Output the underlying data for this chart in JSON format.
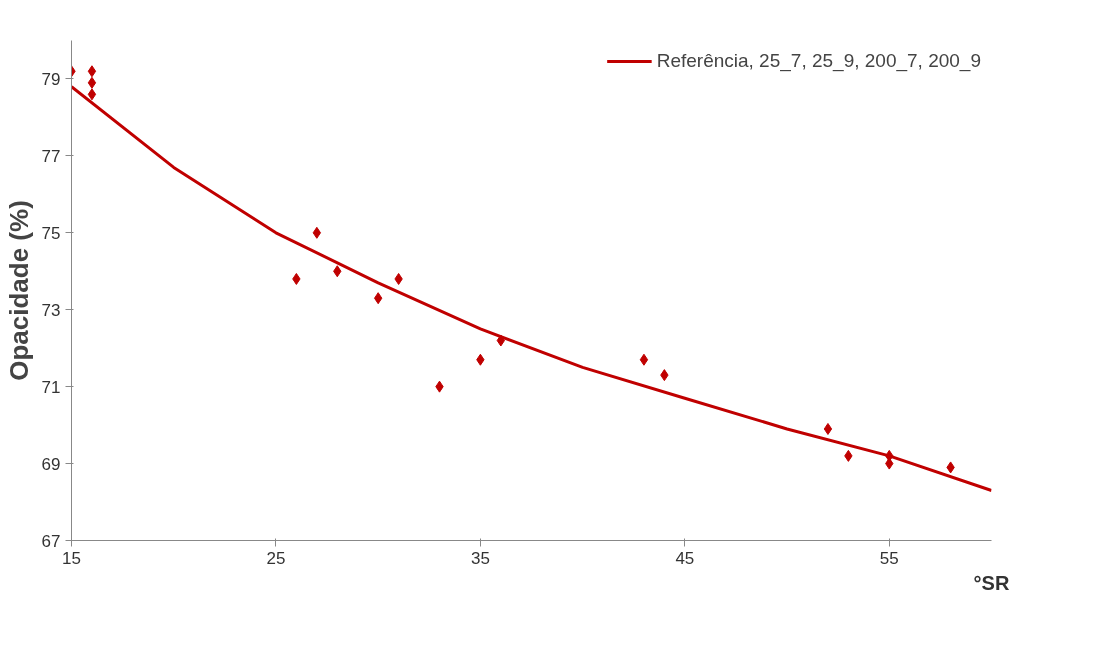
{
  "chart_data": {
    "type": "scatter",
    "xlabel": "°SR",
    "ylabel": "Opacidade (%)",
    "xlim": [
      15,
      60
    ],
    "xticks": [
      15,
      25,
      35,
      45,
      55
    ],
    "ylim": [
      67,
      80
    ],
    "yticks": [
      67,
      69,
      71,
      73,
      75,
      77,
      79
    ],
    "grid": false,
    "legend": "top right",
    "series": [
      {
        "marker": "diamond",
        "color": "#c00000",
        "x": [
          15,
          16,
          16,
          16,
          26,
          27,
          28,
          30,
          31,
          33,
          35,
          36,
          43,
          44,
          52,
          53,
          55,
          55,
          58
        ],
        "values": [
          79.2,
          79.2,
          78.9,
          78.6,
          73.8,
          75.0,
          74.0,
          73.3,
          73.8,
          71.0,
          71.7,
          72.2,
          71.7,
          71.3,
          69.9,
          69.2,
          69.2,
          69.0,
          68.9
        ]
      },
      {
        "type": "line",
        "name": "Referência, 25_7, 25_9, 200_7, 200_9",
        "color": "#c00000",
        "line_style": "solid",
        "x": [
          15,
          20,
          25,
          30,
          35,
          40,
          45,
          50,
          55,
          60
        ],
        "values": [
          78.8,
          76.7,
          75.0,
          73.7,
          72.5,
          71.5,
          70.7,
          69.9,
          69.2,
          68.3
        ]
      }
    ]
  }
}
